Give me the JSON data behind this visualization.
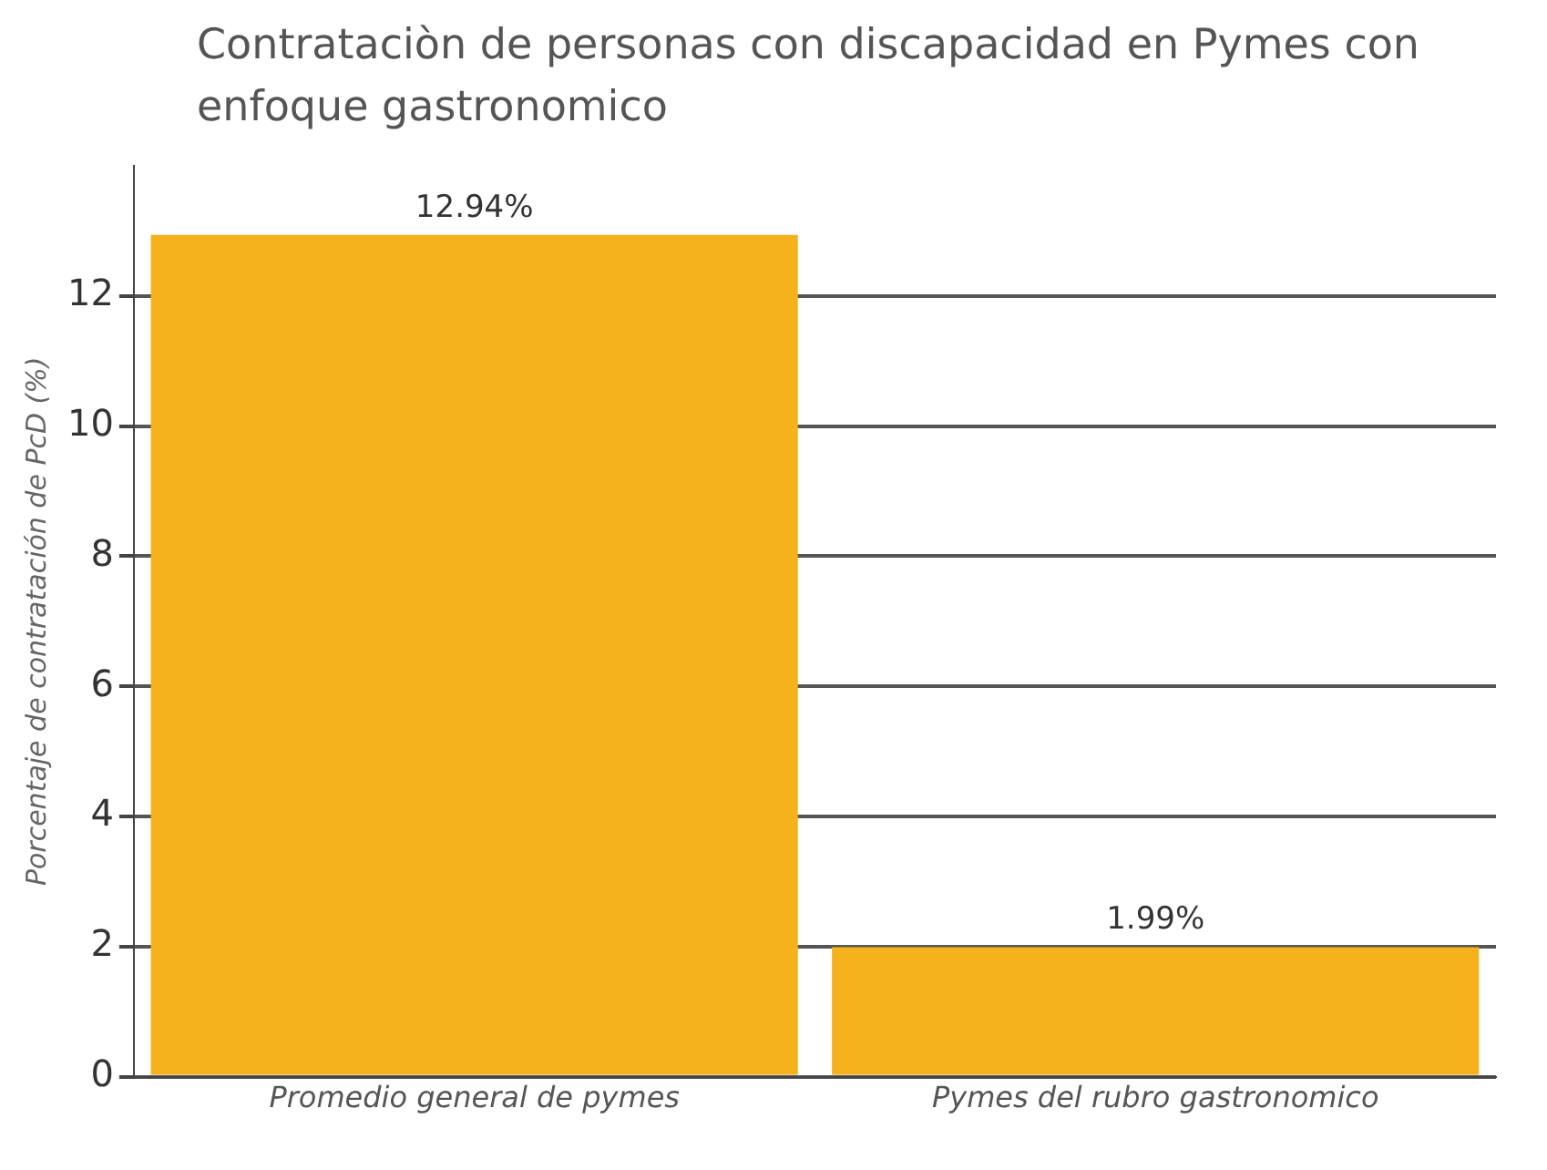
{
  "chart_data": {
    "type": "bar",
    "title": "Contrataciòn de personas con discapacidad en Pymes con enfoque gastronomico",
    "ylabel": "Porcentaje de contratación de PcD (%)",
    "categories": [
      "Promedio general de pymes",
      "Pymes del rubro gastronomico"
    ],
    "values": [
      12.94,
      1.99
    ],
    "color": "#f5b21c",
    "value_labels": [
      "12.94%",
      "1.99%"
    ],
    "ylim": [
      0,
      14
    ],
    "yticks": [
      0,
      2,
      4,
      6,
      8,
      10,
      12
    ],
    "grid": "y"
  }
}
